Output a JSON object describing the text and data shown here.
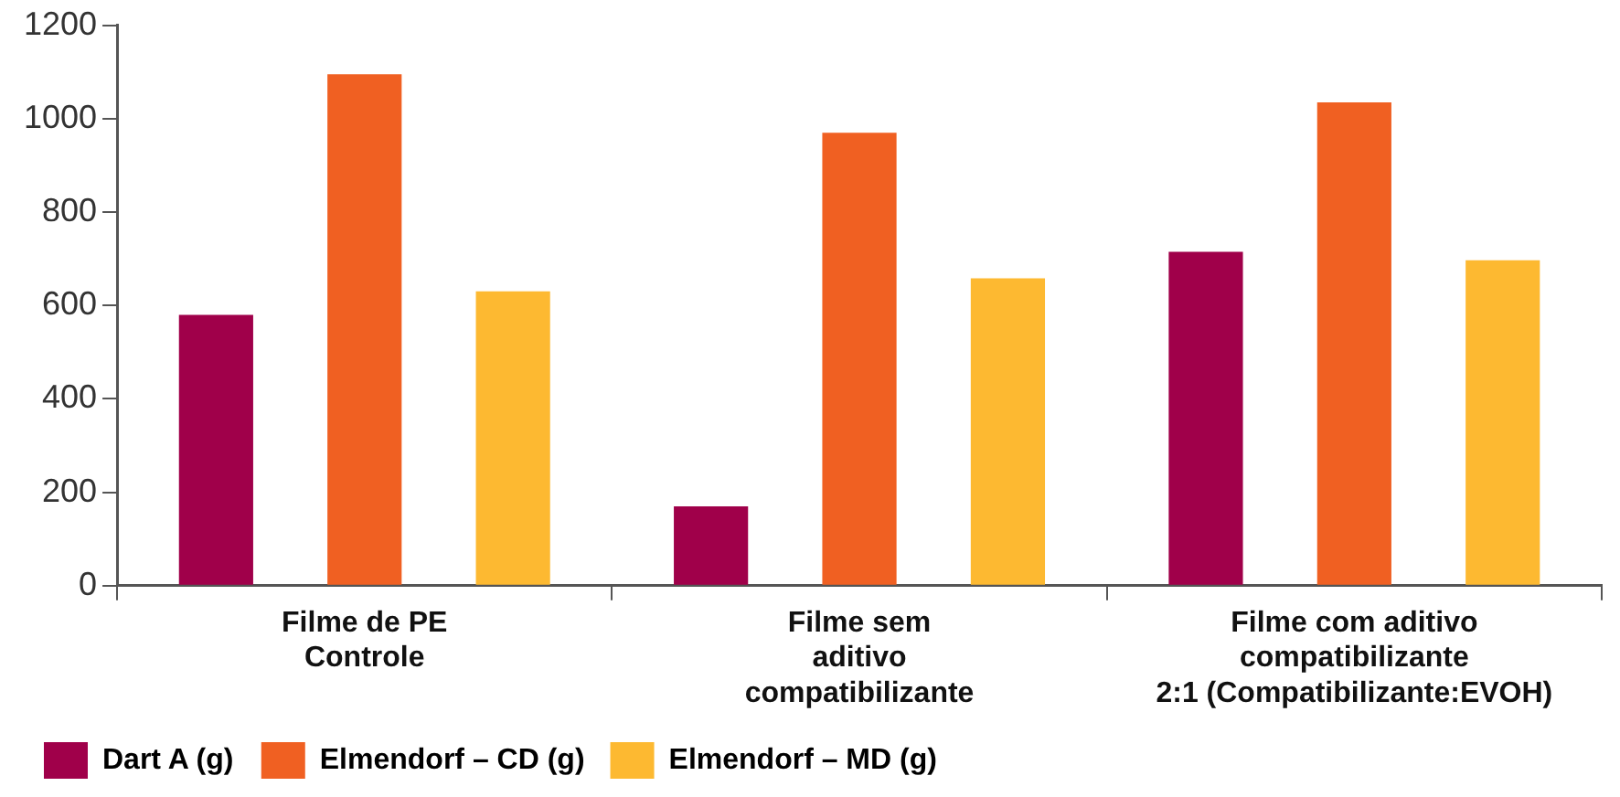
{
  "chart_data": {
    "type": "bar",
    "categories": [
      "Filme de PE\nControle",
      "Filme sem\naditivo\ncompatibilizante",
      "Filme com aditivo\ncompatibilizante\n2:1 (Compatibilizante:EVOH)"
    ],
    "series": [
      {
        "name": "Dart A (g)",
        "color": "#a0004a",
        "values": [
          580,
          170,
          715
        ]
      },
      {
        "name": "Elmendorf – CD (g)",
        "color": "#f06022",
        "values": [
          1095,
          970,
          1035
        ]
      },
      {
        "name": "Elmendorf – MD (g)",
        "color": "#fdb931",
        "values": [
          630,
          658,
          697
        ]
      }
    ],
    "ylim": [
      0,
      1200
    ],
    "yticks": [
      0,
      200,
      400,
      600,
      800,
      1000,
      1200
    ],
    "grid": false,
    "legend": "bottom left"
  }
}
